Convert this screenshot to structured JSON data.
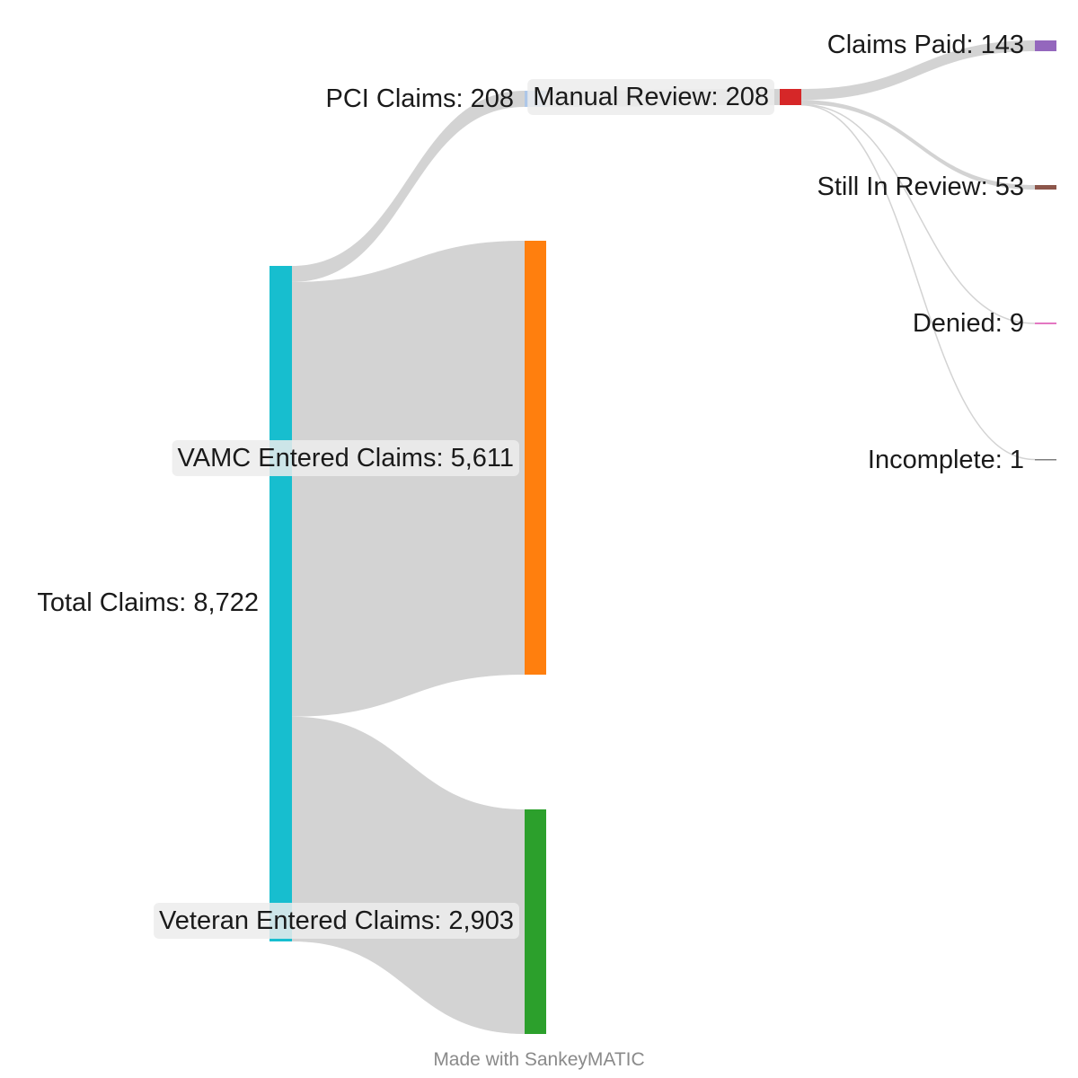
{
  "diagram": {
    "type": "sankey",
    "link_color": "#d3d3d3",
    "nodes": [
      {
        "id": "total",
        "label": "Total Claims: 8,722",
        "value": 8722,
        "color": "#17becf"
      },
      {
        "id": "pci",
        "label": "PCI Claims: 208",
        "value": 208,
        "color": "#aec7e8"
      },
      {
        "id": "vamc",
        "label": "VAMC Entered Claims: 5,611",
        "value": 5611,
        "color": "#ff7f0e"
      },
      {
        "id": "veteran",
        "label": "Veteran Entered Claims: 2,903",
        "value": 2903,
        "color": "#2ca02c"
      },
      {
        "id": "manual",
        "label": "Manual Review: 208",
        "value": 208,
        "color": "#d62728"
      },
      {
        "id": "paid",
        "label": "Claims Paid: 143",
        "value": 143,
        "color": "#9467bd"
      },
      {
        "id": "still",
        "label": "Still In Review: 53",
        "value": 53,
        "color": "#8c564b"
      },
      {
        "id": "denied",
        "label": "Denied: 9",
        "value": 9,
        "color": "#e377c2"
      },
      {
        "id": "incomplete",
        "label": "Incomplete: 1",
        "value": 1,
        "color": "#7f7f7f"
      }
    ],
    "links": [
      {
        "source": "total",
        "target": "pci",
        "value": 208
      },
      {
        "source": "total",
        "target": "vamc",
        "value": 5611
      },
      {
        "source": "total",
        "target": "veteran",
        "value": 2903
      },
      {
        "source": "pci",
        "target": "manual",
        "value": 208
      },
      {
        "source": "manual",
        "target": "paid",
        "value": 143
      },
      {
        "source": "manual",
        "target": "still",
        "value": 53
      },
      {
        "source": "manual",
        "target": "denied",
        "value": 9
      },
      {
        "source": "manual",
        "target": "incomplete",
        "value": 1
      }
    ]
  },
  "footer": {
    "credit": "Made with SankeyMATIC"
  }
}
